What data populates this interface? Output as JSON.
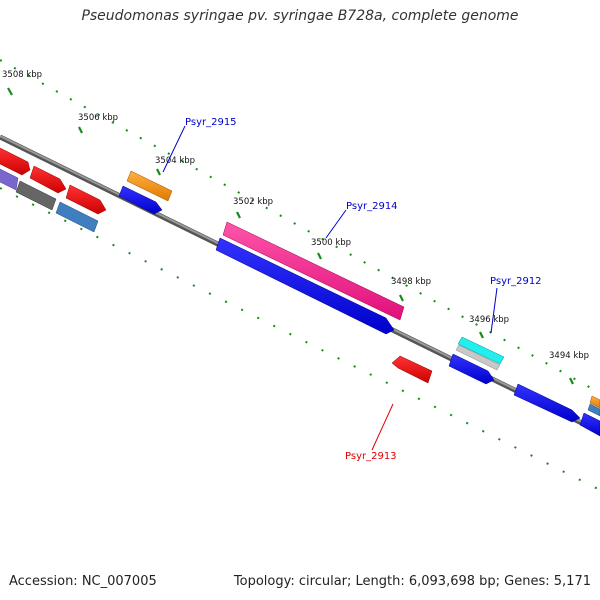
{
  "title": "Pseudomonas syringae pv. syringae B728a, complete genome",
  "footer": {
    "accession": "Accession: NC_007005",
    "summary": "Topology: circular; Length: 6,093,698 bp; Genes: 5,171"
  },
  "ticks": [
    "3508 kbp",
    "3506 kbp",
    "3504 kbp",
    "3502 kbp",
    "3500 kbp",
    "3498 kbp",
    "3496 kbp",
    "3494 kbp"
  ],
  "genes": {
    "psyr_2915": "Psyr_2915",
    "psyr_2914": "Psyr_2914",
    "psyr_2913": "Psyr_2913",
    "psyr_2912": "Psyr_2912"
  },
  "colors": {
    "backbone": "#7a7a7a",
    "tick": "#1a8a1a",
    "blue": "#0000ee",
    "red": "#ee0000",
    "magenta": "#ff1a8c",
    "orange": "#ff9a1a",
    "cyan": "#22eeee",
    "gray": "#666666",
    "steel": "#3f7fbf",
    "purple": "#7a66cc",
    "label_blue": "#0000cc",
    "label_red": "#dd0000"
  }
}
